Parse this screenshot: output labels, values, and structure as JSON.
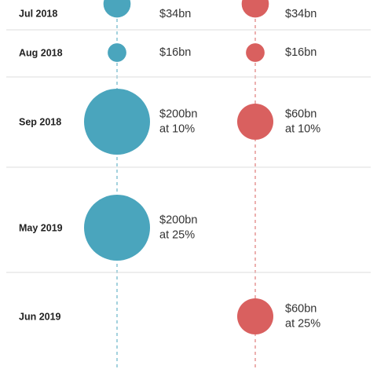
{
  "chart_data": {
    "type": "scatter",
    "colors": {
      "us": "#4aa5bd",
      "china": "#d9605f",
      "divider": "#dddddd"
    },
    "rows": [
      {
        "label": "Jul 2018",
        "us": {
          "value_bn": 34,
          "text": [
            "$34bn"
          ]
        },
        "china": {
          "value_bn": 34,
          "text": [
            "$34bn"
          ]
        }
      },
      {
        "label": "Aug 2018",
        "us": {
          "value_bn": 16,
          "text": [
            "$16bn"
          ]
        },
        "china": {
          "value_bn": 16,
          "text": [
            "$16bn"
          ]
        }
      },
      {
        "label": "Sep 2018",
        "us": {
          "value_bn": 200,
          "text": [
            "$200bn",
            "at 10%"
          ]
        },
        "china": {
          "value_bn": 60,
          "text": [
            "$60bn",
            "at 10%"
          ]
        }
      },
      {
        "label": "May 2019",
        "us": {
          "value_bn": 200,
          "text": [
            "$200bn",
            "at 25%"
          ]
        },
        "china": null
      },
      {
        "label": "Jun 2019",
        "us": null,
        "china": {
          "value_bn": 60,
          "text": [
            "$60bn",
            "at 25%"
          ]
        }
      }
    ]
  }
}
